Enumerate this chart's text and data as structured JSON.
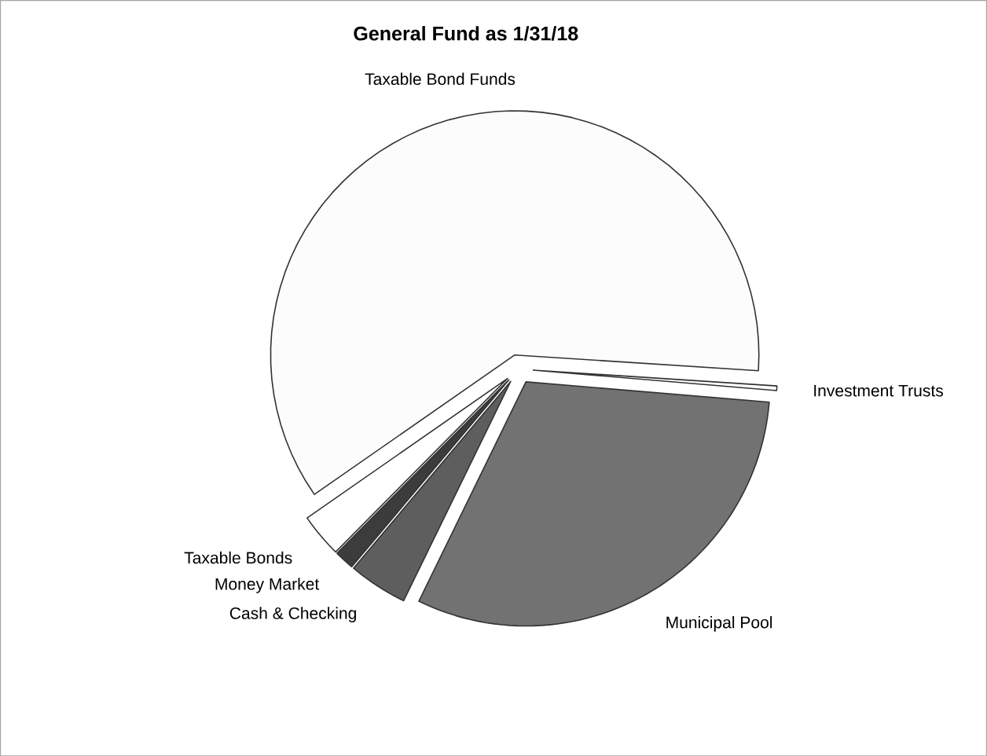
{
  "chart_data": {
    "type": "pie",
    "title": "General Fund as 1/31/18",
    "categories": [
      "Taxable Bond Funds",
      "Taxable Bonds",
      "Money Market",
      "Cash & Checking",
      "Municipal Pool",
      "Investment Trusts"
    ],
    "values": [
      60.7,
      2.9,
      1.3,
      3.9,
      30.9,
      0.3
    ],
    "colors": [
      "#fcfcfc",
      "#ffffff",
      "#3c3c3c",
      "#5e5e5e",
      "#727272",
      "#ffffff"
    ]
  }
}
